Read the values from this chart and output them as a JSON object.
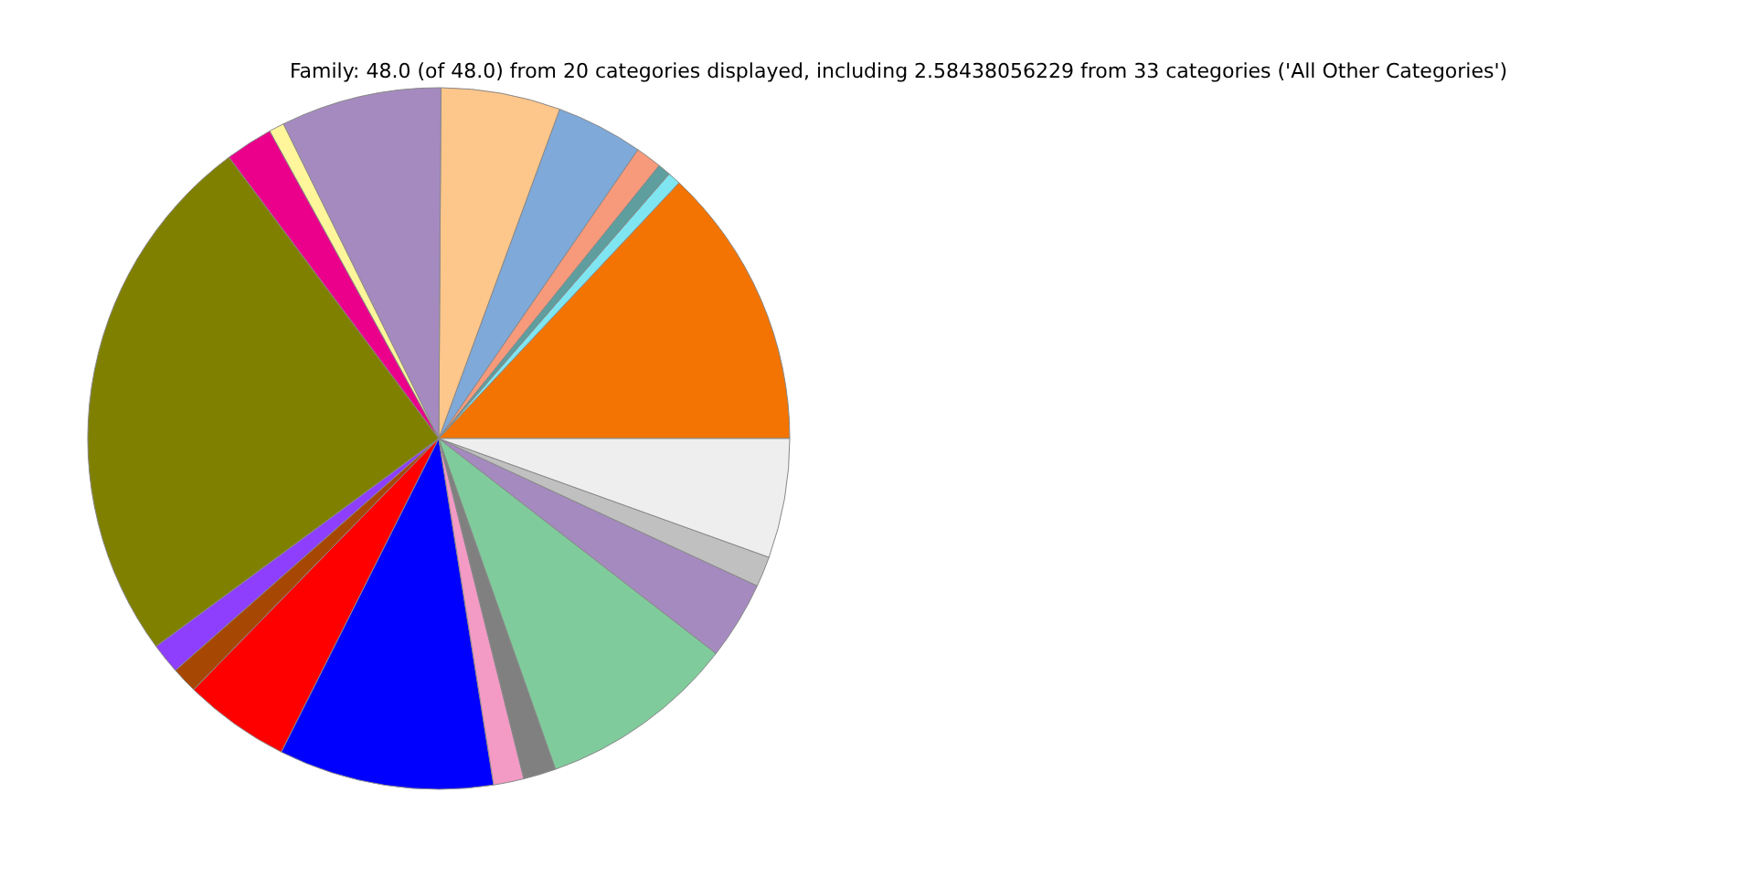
{
  "chart_data": {
    "type": "pie",
    "title": "Family: 48.0 (of 48.0) from 20 categories displayed, including 2.58438056229 from 33 categories ('All Other Categories')",
    "categories": [
      null,
      null,
      null,
      null,
      null,
      null,
      null,
      null,
      null,
      null,
      null,
      null,
      null,
      null,
      null,
      null,
      null,
      null,
      null,
      null
    ],
    "values": [
      13.0,
      0.6,
      0.6,
      1.2,
      4.0,
      5.5,
      7.4,
      0.7,
      2.2,
      24.9,
      1.4,
      1.2,
      4.9,
      9.9,
      1.4,
      1.5,
      9.1,
      3.6,
      1.4,
      5.5
    ],
    "colors": [
      "#f37402",
      "#7fe5f0",
      "#5f9e9e",
      "#f79a7b",
      "#7ea9d9",
      "#fdc68a",
      "#a58ac0",
      "#fff59a",
      "#ea008b",
      "#808000",
      "#8d3ffd",
      "#a74704",
      "#ff0000",
      "#0000ff",
      "#f39ac5",
      "#808080",
      "#80cb9c",
      "#a58ac0",
      "#c0c0c0",
      "#eeeeee"
    ],
    "legend": false
  }
}
